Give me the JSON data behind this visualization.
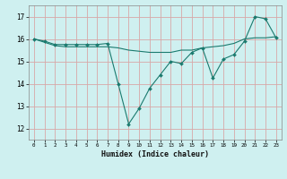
{
  "xlabel": "Humidex (Indice chaleur)",
  "ylabel": "",
  "background_color": "#cff0f0",
  "grid_color": "#d8a8a8",
  "line_color": "#1a7a6e",
  "xlim": [
    -0.5,
    23.5
  ],
  "ylim": [
    11.5,
    17.5
  ],
  "yticks": [
    12,
    13,
    14,
    15,
    16,
    17
  ],
  "xticks": [
    0,
    1,
    2,
    3,
    4,
    5,
    6,
    7,
    8,
    9,
    10,
    11,
    12,
    13,
    14,
    15,
    16,
    17,
    18,
    19,
    20,
    21,
    22,
    23
  ],
  "line1_x": [
    0,
    1,
    2,
    3,
    4,
    5,
    6,
    7,
    8,
    9,
    10,
    11,
    12,
    13,
    14,
    15,
    16,
    17,
    18,
    19,
    20,
    21,
    22,
    23
  ],
  "line1_y": [
    16.0,
    15.9,
    15.75,
    15.75,
    15.75,
    15.75,
    15.75,
    15.8,
    14.0,
    12.2,
    12.9,
    13.8,
    14.4,
    15.0,
    14.9,
    15.4,
    15.6,
    14.25,
    15.1,
    15.3,
    15.9,
    17.0,
    16.9,
    16.05
  ],
  "line2_x": [
    0,
    1,
    2,
    3,
    4,
    5,
    6,
    7,
    8,
    9,
    10,
    11,
    12,
    13,
    14,
    15,
    16,
    17,
    18,
    19,
    20,
    21,
    22,
    23
  ],
  "line2_y": [
    16.0,
    15.85,
    15.7,
    15.65,
    15.65,
    15.65,
    15.65,
    15.65,
    15.6,
    15.5,
    15.45,
    15.4,
    15.4,
    15.4,
    15.5,
    15.5,
    15.6,
    15.65,
    15.7,
    15.8,
    16.0,
    16.05,
    16.05,
    16.1
  ]
}
